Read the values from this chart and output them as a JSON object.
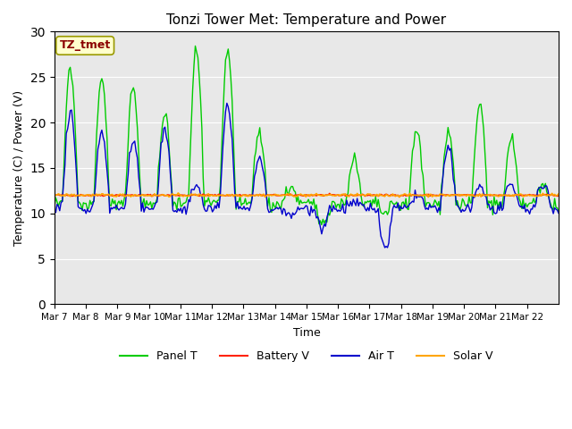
{
  "title": "Tonzi Tower Met: Temperature and Power",
  "xlabel": "Time",
  "ylabel": "Temperature (C) / Power (V)",
  "ylim": [
    0,
    30
  ],
  "yticks": [
    0,
    5,
    10,
    15,
    20,
    25,
    30
  ],
  "annotation": "TZ_tmet",
  "annotation_color": "#8B0000",
  "annotation_bg": "#FFFFCC",
  "annotation_edge": "#999900",
  "bg_color": "#E8E8E8",
  "panel_color": "#00CC00",
  "battery_color": "#FF2200",
  "air_color": "#0000CC",
  "solar_color": "#FFA500",
  "legend_items": [
    "Panel T",
    "Battery V",
    "Air T",
    "Solar V"
  ],
  "n_days": 16,
  "x_tick_labels": [
    "Mar 7",
    "Mar 8",
    "Mar 9",
    "Mar 10",
    "Mar 11",
    "Mar 12",
    "Mar 13",
    "Mar 14",
    "Mar 15",
    "Mar 16",
    "Mar 17",
    "Mar 18",
    "Mar 19",
    "Mar 20",
    "Mar 21",
    "Mar 22"
  ],
  "panel_peaks": [
    26,
    25,
    24,
    21,
    28,
    28,
    19,
    13,
    9,
    16,
    10,
    19,
    19,
    22,
    18,
    13
  ],
  "air_peaks": [
    21,
    19,
    18,
    19,
    13,
    22,
    16,
    9.5,
    8.5,
    11,
    6,
    12,
    17,
    13,
    13,
    13
  ]
}
